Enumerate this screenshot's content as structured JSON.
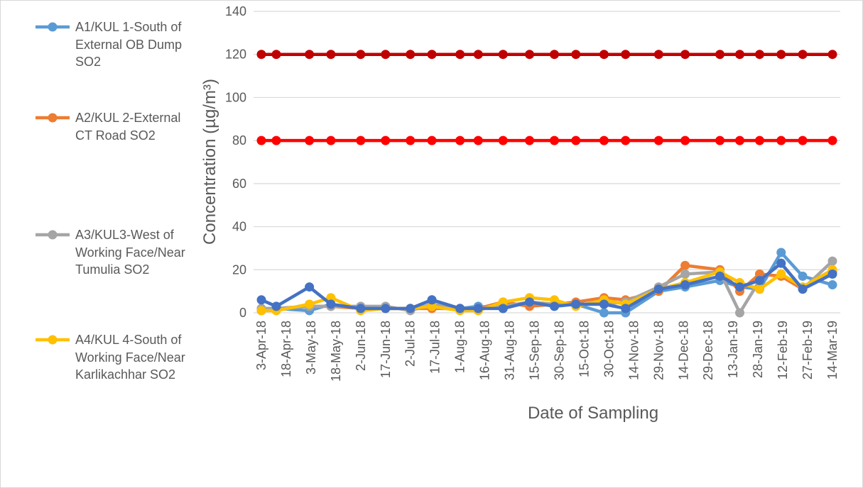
{
  "chart_data": {
    "type": "line",
    "title": "",
    "xlabel": "Date of Sampling",
    "ylabel": "Concentration (µg/m³)",
    "ylim": [
      0,
      140
    ],
    "yticks": [
      0,
      20,
      40,
      60,
      80,
      100,
      120,
      140
    ],
    "grid": true,
    "legend_position": "left",
    "xtick_labels": [
      "3-Apr-18",
      "18-Apr-18",
      "3-May-18",
      "18-May-18",
      "2-Jun-18",
      "17-Jun-18",
      "2-Jul-18",
      "17-Jul-18",
      "1-Aug-18",
      "16-Aug-18",
      "31-Aug-18",
      "15-Sep-18",
      "30-Sep-18",
      "15-Oct-18",
      "30-Oct-18",
      "14-Nov-18",
      "29-Nov-18",
      "14-Dec-18",
      "29-Dec-18",
      "13-Jan-19",
      "28-Jan-19",
      "12-Feb-19",
      "27-Feb-19",
      "14-Mar-19"
    ],
    "x": [
      "2018-04-03",
      "2018-04-12",
      "2018-05-02",
      "2018-05-15",
      "2018-06-02",
      "2018-06-17",
      "2018-07-02",
      "2018-07-15",
      "2018-08-01",
      "2018-08-12",
      "2018-08-27",
      "2018-09-12",
      "2018-09-27",
      "2018-10-10",
      "2018-10-27",
      "2018-11-09",
      "2018-11-29",
      "2018-12-15",
      "2019-01-05",
      "2019-01-17",
      "2019-01-29",
      "2019-02-11",
      "2019-02-24",
      "2019-03-14"
    ],
    "series": [
      {
        "name": "A1/KUL 1-South of External OB Dump SO2",
        "color": "#5b9bd5",
        "values": [
          2,
          2,
          1,
          4,
          2,
          2,
          2,
          6,
          2,
          3,
          2,
          5,
          4,
          4,
          0,
          0,
          10,
          12,
          15,
          12,
          11,
          28,
          17,
          13
        ]
      },
      {
        "name": "A2/KUL 2-External CT Road SO2",
        "color": "#ed7d31",
        "values": [
          1,
          2,
          3,
          3,
          2,
          2,
          2,
          2,
          2,
          2,
          5,
          3,
          4,
          5,
          7,
          6,
          10,
          22,
          20,
          10,
          18,
          17,
          11,
          19
        ]
      },
      {
        "name": "A3/KUL3-West of Working Face/Near Tumulia SO2",
        "color": "#a5a5a5",
        "values": [
          2,
          2,
          3,
          3,
          3,
          3,
          1,
          4,
          2,
          2,
          3,
          5,
          4,
          4,
          4,
          5,
          12,
          18,
          19,
          0,
          15,
          23,
          11,
          24
        ]
      },
      {
        "name": "A4/KUL 4-South of Working Face/Near Karlikachhar SO2",
        "color": "#ffc000",
        "values": [
          1,
          1,
          4,
          7,
          1,
          2,
          2,
          3,
          1,
          1,
          5,
          7,
          6,
          3,
          6,
          4,
          11,
          14,
          19,
          14,
          11,
          18,
          12,
          20
        ]
      },
      {
        "name": "",
        "color": "#4472c4",
        "values": [
          6,
          3,
          12,
          4,
          2,
          2,
          2,
          6,
          2,
          2,
          2,
          5,
          3,
          4,
          4,
          2,
          11,
          13,
          17,
          12,
          15,
          23,
          11,
          18
        ]
      },
      {
        "name": "",
        "color": "#ff0000",
        "values": [
          80,
          80,
          80,
          80,
          80,
          80,
          80,
          80,
          80,
          80,
          80,
          80,
          80,
          80,
          80,
          80,
          80,
          80,
          80,
          80,
          80,
          80,
          80,
          80
        ]
      },
      {
        "name": "",
        "color": "#c00000",
        "values": [
          120,
          120,
          120,
          120,
          120,
          120,
          120,
          120,
          120,
          120,
          120,
          120,
          120,
          120,
          120,
          120,
          120,
          120,
          120,
          120,
          120,
          120,
          120,
          120
        ]
      }
    ]
  }
}
